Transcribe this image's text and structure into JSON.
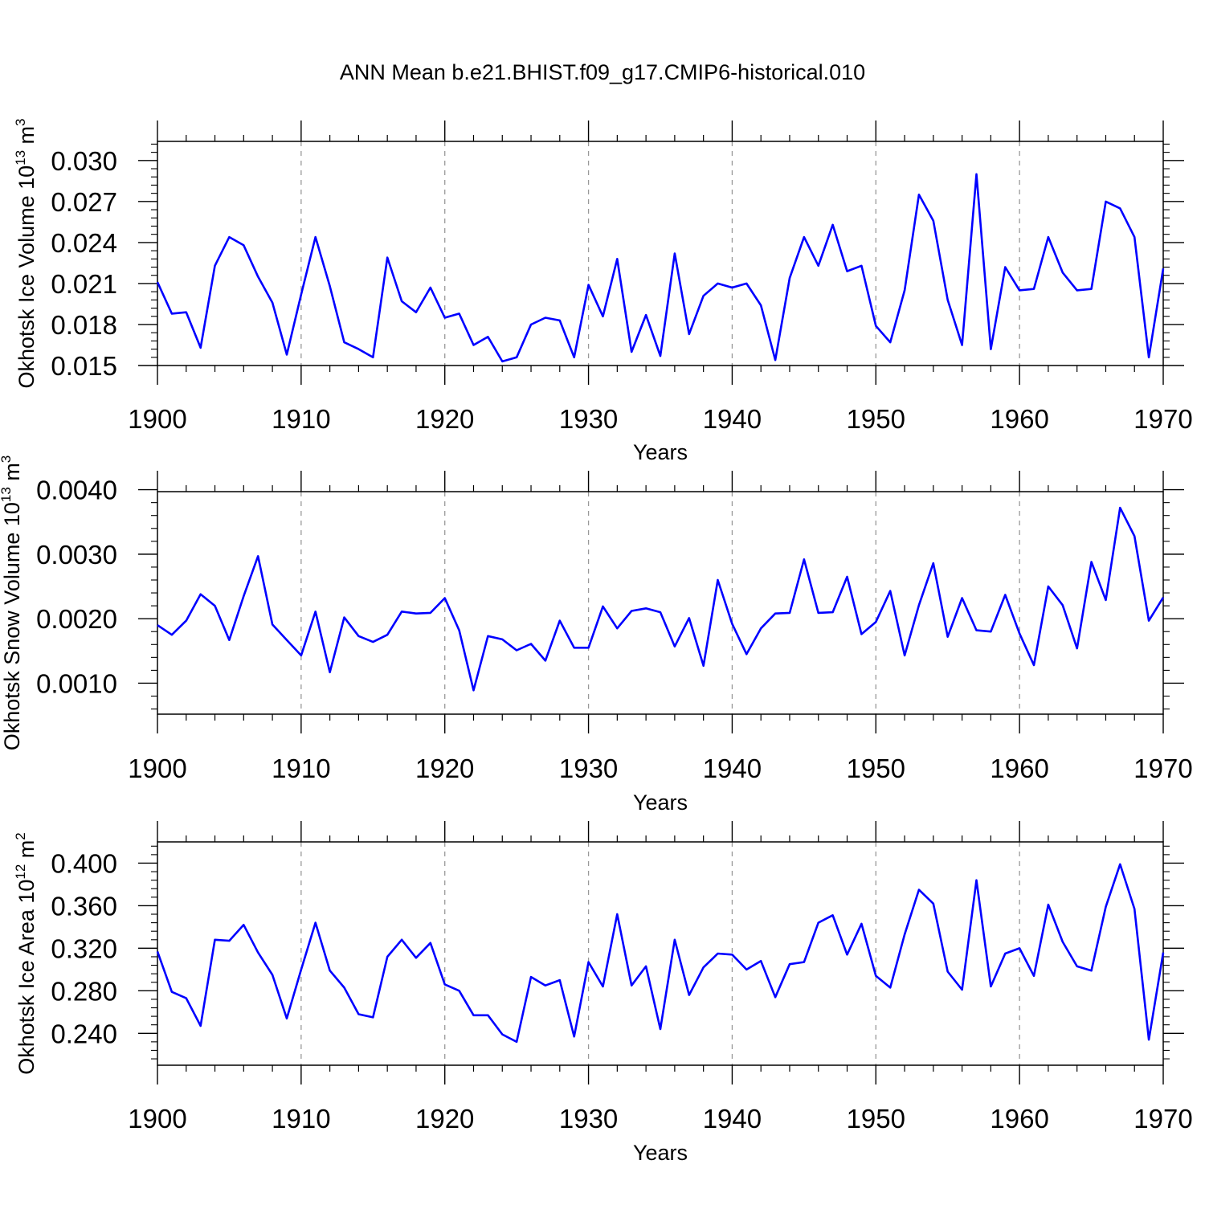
{
  "title": "ANN Mean b.e21.BHIST.f09_g17.CMIP6-historical.010",
  "colors": {
    "series": "#0000ff",
    "frame": "#000000",
    "grid": "#999999"
  },
  "chart_data": [
    {
      "type": "line",
      "name": "ice-volume",
      "title": "ANN Mean b.e21.BHIST.f09_g17.CMIP6-historical.010",
      "xlabel": "Years",
      "ylabel_parts": {
        "pre": "Okhotsk Ice Volume 10",
        "sup1": "13",
        "mid": " m",
        "sup2": "3"
      },
      "xlim": [
        1900,
        1970
      ],
      "ylim": [
        0.015,
        0.0314
      ],
      "x_ticks": [
        "1900",
        "1910",
        "1920",
        "1930",
        "1940",
        "1950",
        "1960",
        "1970"
      ],
      "y_ticks": [
        "0.015",
        "0.018",
        "0.021",
        "0.024",
        "0.027",
        "0.030"
      ],
      "x_start": 1900,
      "values": [
        0.0211,
        0.0188,
        0.0189,
        0.0163,
        0.0223,
        0.0244,
        0.0238,
        0.0215,
        0.0196,
        0.0158,
        0.0202,
        0.0244,
        0.0208,
        0.0167,
        0.0162,
        0.0156,
        0.0229,
        0.0197,
        0.0189,
        0.0207,
        0.0185,
        0.0188,
        0.0165,
        0.0171,
        0.0153,
        0.0156,
        0.018,
        0.0185,
        0.0183,
        0.0156,
        0.0209,
        0.0186,
        0.0228,
        0.016,
        0.0187,
        0.0157,
        0.0232,
        0.0173,
        0.0201,
        0.021,
        0.0207,
        0.021,
        0.0194,
        0.0154,
        0.0214,
        0.0244,
        0.0223,
        0.0253,
        0.0219,
        0.0223,
        0.0179,
        0.0167,
        0.0205,
        0.0275,
        0.0256,
        0.0198,
        0.0165,
        0.029,
        0.0162,
        0.0222,
        0.0205,
        0.0206,
        0.0244,
        0.0218,
        0.0205,
        0.0206,
        0.027,
        0.0265,
        0.0244,
        0.0156,
        0.0221
      ]
    },
    {
      "type": "line",
      "name": "snow-volume",
      "title": "",
      "xlabel": "Years",
      "ylabel_parts": {
        "pre": "Okhotsk Snow Volume 10",
        "sup1": "13",
        "mid": " m",
        "sup2": "3"
      },
      "xlim": [
        1900,
        1970
      ],
      "ylim": [
        0.00052,
        0.00397
      ],
      "x_ticks": [
        "1900",
        "1910",
        "1920",
        "1930",
        "1940",
        "1950",
        "1960",
        "1970"
      ],
      "y_ticks": [
        "0.0010",
        "0.0020",
        "0.0030",
        "0.0040"
      ],
      "x_start": 1900,
      "values": [
        0.0019,
        0.00175,
        0.00197,
        0.00238,
        0.0022,
        0.00167,
        0.00235,
        0.00297,
        0.00191,
        0.00167,
        0.00143,
        0.00211,
        0.00117,
        0.00202,
        0.00173,
        0.00164,
        0.00175,
        0.00211,
        0.00208,
        0.00209,
        0.00232,
        0.00182,
        0.00089,
        0.00173,
        0.00168,
        0.00151,
        0.00161,
        0.00135,
        0.00197,
        0.00155,
        0.00155,
        0.00219,
        0.00185,
        0.00212,
        0.00216,
        0.0021,
        0.00157,
        0.00201,
        0.00127,
        0.0026,
        0.00192,
        0.00145,
        0.00185,
        0.00208,
        0.00209,
        0.00292,
        0.00209,
        0.0021,
        0.00265,
        0.00176,
        0.00195,
        0.00243,
        0.00143,
        0.00221,
        0.00286,
        0.00172,
        0.00232,
        0.00182,
        0.0018,
        0.00237,
        0.00177,
        0.00128,
        0.0025,
        0.00221,
        0.00154,
        0.00288,
        0.00229,
        0.00372,
        0.00328,
        0.00197,
        0.00233
      ]
    },
    {
      "type": "line",
      "name": "ice-area",
      "title": "",
      "xlabel": "Years",
      "ylabel_parts": {
        "pre": "Okhotsk Ice Area 10",
        "sup1": "12",
        "mid": " m",
        "sup2": "2"
      },
      "xlim": [
        1900,
        1970
      ],
      "ylim": [
        0.21,
        0.42
      ],
      "x_ticks": [
        "1900",
        "1910",
        "1920",
        "1930",
        "1940",
        "1950",
        "1960",
        "1970"
      ],
      "y_ticks": [
        "0.240",
        "0.280",
        "0.320",
        "0.360",
        "0.400"
      ],
      "x_start": 1900,
      "values": [
        0.317,
        0.279,
        0.273,
        0.247,
        0.328,
        0.327,
        0.342,
        0.316,
        0.295,
        0.254,
        0.3,
        0.344,
        0.299,
        0.283,
        0.258,
        0.255,
        0.312,
        0.328,
        0.311,
        0.325,
        0.286,
        0.28,
        0.257,
        0.257,
        0.239,
        0.232,
        0.293,
        0.285,
        0.29,
        0.237,
        0.307,
        0.284,
        0.352,
        0.285,
        0.303,
        0.244,
        0.328,
        0.276,
        0.302,
        0.315,
        0.314,
        0.3,
        0.308,
        0.274,
        0.305,
        0.307,
        0.344,
        0.351,
        0.314,
        0.343,
        0.294,
        0.283,
        0.333,
        0.375,
        0.362,
        0.298,
        0.281,
        0.384,
        0.284,
        0.315,
        0.32,
        0.294,
        0.361,
        0.326,
        0.303,
        0.299,
        0.359,
        0.399,
        0.357,
        0.234,
        0.316
      ]
    }
  ]
}
